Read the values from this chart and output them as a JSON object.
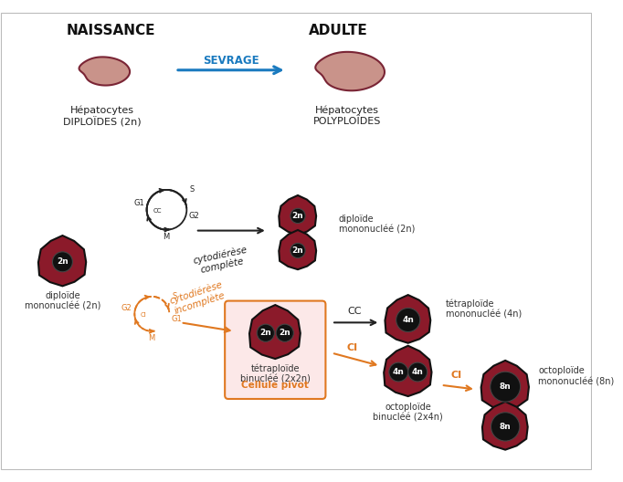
{
  "bg_color": "#ffffff",
  "header_naissance": "NAISSANCE",
  "header_adulte": "ADULTE",
  "sevrage_label": "SEVRAGE",
  "hepato_diploides": "Hépatocytes\nDIPLOÏDES (2n)",
  "hepato_polyploides": "Hépatocytes\nPOLYPLOÏDES",
  "liver_color": "#c9938a",
  "liver_outline": "#7a2535",
  "sevrage_arrow_color": "#1a7abf",
  "sevrage_text_color": "#1a7abf",
  "cell_body_color": "#8b1a2a",
  "cell_outline_color": "#111111",
  "nucleus_color": "#111111",
  "nucleus_text_color": "#ffffff",
  "cycle_color_black": "#222222",
  "cycle_color_orange": "#e07820",
  "pivot_box_color": "#fce8e8",
  "pivot_box_outline": "#e07820",
  "pivot_text_color": "#e07820",
  "cc_arrow_color": "#222222",
  "ci_arrow_color": "#e07820",
  "label_color": "#333333"
}
